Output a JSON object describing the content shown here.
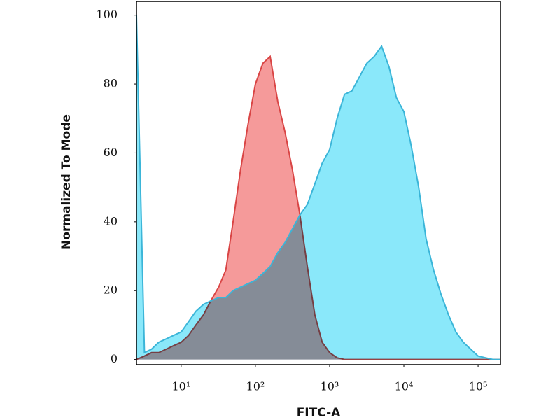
{
  "chart_data": {
    "type": "area",
    "xlabel": "FITC-A",
    "ylabel": "Normalized To Mode",
    "xscale": "log",
    "x": [
      2.5,
      3.2,
      4,
      5,
      6.3,
      7.9,
      10,
      12.6,
      15.8,
      20,
      25,
      32,
      40,
      50,
      63,
      79,
      100,
      126,
      158,
      200,
      251,
      316,
      398,
      501,
      631,
      794,
      1000,
      1259,
      1585,
      1995,
      2512,
      3162,
      3981,
      5012,
      6310,
      7943,
      10000,
      12589,
      15849,
      19953,
      25119,
      31623,
      39811,
      50119,
      63096,
      79433,
      100000,
      125893,
      158489,
      199526
    ],
    "series": [
      {
        "color": "#f59a9a",
        "line_color": "#d94545",
        "values": [
          0,
          1,
          2,
          2,
          3,
          4,
          5,
          7,
          10,
          13,
          17,
          21,
          26,
          40,
          55,
          68,
          80,
          86,
          88,
          75,
          66,
          55,
          42,
          27,
          13,
          5,
          2,
          0.5,
          0,
          0,
          0,
          0,
          0,
          0,
          0,
          0,
          0,
          0,
          0,
          0,
          0,
          0,
          0,
          0,
          0,
          0,
          0,
          0,
          0,
          0
        ]
      },
      {
        "color": "#8ae8fa",
        "line_color": "#3bb5d8",
        "values": [
          100,
          2,
          3,
          5,
          6,
          7,
          8,
          11,
          14,
          16,
          17,
          18,
          18,
          20,
          21,
          22,
          23,
          25,
          27,
          31,
          34,
          38,
          42,
          45,
          51,
          57,
          61,
          70,
          77,
          78,
          82,
          86,
          88,
          91,
          85,
          76,
          72,
          62,
          50,
          35,
          26,
          19,
          13,
          8,
          5,
          3,
          1,
          0.5,
          0,
          0
        ]
      }
    ],
    "xlim": [
      2.5,
      200000
    ],
    "xticks": [
      {
        "value": 10,
        "label": "10¹"
      },
      {
        "value": 100,
        "label": "10²"
      },
      {
        "value": 1000,
        "label": "10³"
      },
      {
        "value": 10000,
        "label": "10⁴"
      },
      {
        "value": 100000,
        "label": "10⁵"
      }
    ],
    "ylim": [
      -1.5,
      104
    ],
    "yticks": [
      0,
      20,
      40,
      60,
      80,
      100
    ]
  }
}
